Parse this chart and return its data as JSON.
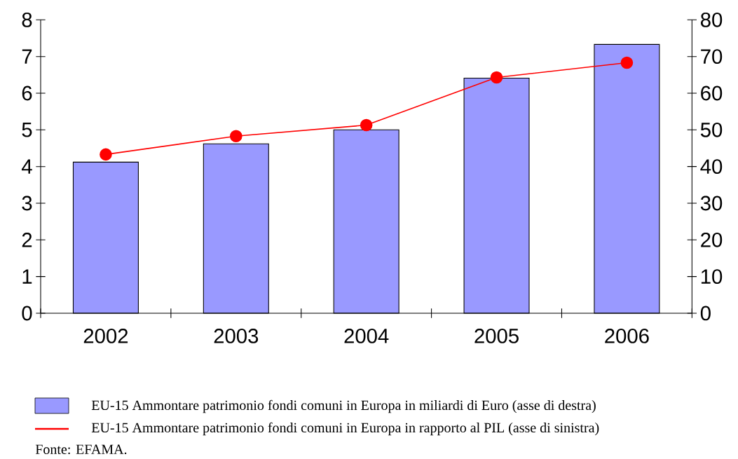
{
  "chart_data": {
    "type": "bar",
    "categories": [
      "2002",
      "2003",
      "2004",
      "2005",
      "2006"
    ],
    "series": [
      {
        "name": "EU-15 Ammontare patrimonio fondi comuni in Europa in miliardi di Euro (asse di destra)",
        "axis": "y2",
        "color": "#9999ff",
        "values": [
          41.2,
          46.2,
          50,
          64.1,
          73.3
        ]
      },
      {
        "name": "EU-15 Ammontare patrimonio fondi comuni in Europa in rapporto al PIL (asse di sinistra)",
        "type": "line",
        "color": "#ff0000",
        "values": [
          4.33,
          4.83,
          5.13,
          6.43,
          6.83
        ]
      }
    ],
    "ylim": [
      0,
      8
    ],
    "yticks": [
      0,
      1,
      2,
      3,
      4,
      5,
      6,
      7,
      8
    ],
    "y2lim": [
      0,
      80
    ],
    "y2ticks": [
      0,
      10,
      20,
      30,
      40,
      50,
      60,
      70,
      80
    ],
    "marker": "circle",
    "legend": "bottom",
    "grid": false,
    "annotations": [
      "Fonte: EFAMA."
    ]
  }
}
